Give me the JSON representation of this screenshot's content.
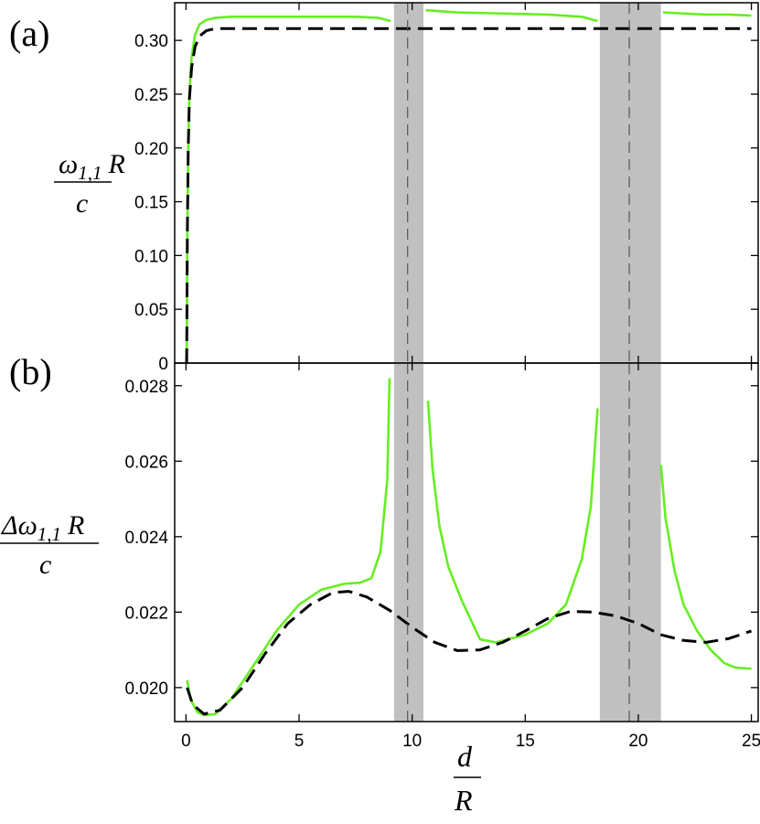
{
  "chart_data": [
    {
      "type": "line",
      "panel_label": "(a)",
      "ylabel": {
        "numerator_symbol": "ω",
        "numerator_subscript": "1,1",
        "numerator_var": "R",
        "denominator": "c"
      },
      "xlim": [
        -0.5,
        25.3
      ],
      "ylim": [
        0,
        0.335
      ],
      "xticks": [
        0,
        5,
        10,
        15,
        20,
        25
      ],
      "yticks": [
        0,
        0.05,
        0.1,
        0.15,
        0.2,
        0.25,
        0.3
      ],
      "ytick_labels": [
        "0",
        "0.05",
        "0.10",
        "0.15",
        "0.20",
        "0.25",
        "0.30"
      ],
      "x_tick_labels_shown": false,
      "shaded_bands": [
        [
          9.2,
          10.5
        ],
        [
          18.3,
          21.0
        ]
      ],
      "vertical_dashed_lines": [
        9.8,
        19.6
      ],
      "series": [
        {
          "style": "solid",
          "color": "#66ee22",
          "segments": [
            [
              [
                0.03,
                0.0
              ],
              [
                0.06,
                0.12
              ],
              [
                0.1,
                0.2
              ],
              [
                0.15,
                0.25
              ],
              [
                0.25,
                0.285
              ],
              [
                0.4,
                0.305
              ],
              [
                0.6,
                0.315
              ],
              [
                0.9,
                0.319
              ],
              [
                1.3,
                0.321
              ],
              [
                2,
                0.322
              ],
              [
                4,
                0.322
              ],
              [
                6,
                0.322
              ],
              [
                7.5,
                0.322
              ],
              [
                8.5,
                0.321
              ],
              [
                9.05,
                0.318
              ]
            ],
            [
              [
                10.6,
                0.328
              ],
              [
                12,
                0.326
              ],
              [
                14,
                0.325
              ],
              [
                16,
                0.324
              ],
              [
                17.5,
                0.322
              ],
              [
                18.2,
                0.318
              ]
            ],
            [
              [
                21.1,
                0.326
              ],
              [
                22,
                0.325
              ],
              [
                23,
                0.324
              ],
              [
                24,
                0.324
              ],
              [
                25,
                0.323
              ]
            ]
          ]
        },
        {
          "style": "dashed",
          "color": "#000000",
          "segments": [
            [
              [
                0.03,
                0.0
              ],
              [
                0.06,
                0.12
              ],
              [
                0.1,
                0.2
              ],
              [
                0.15,
                0.245
              ],
              [
                0.25,
                0.275
              ],
              [
                0.4,
                0.294
              ],
              [
                0.6,
                0.304
              ],
              [
                0.9,
                0.309
              ],
              [
                1.3,
                0.311
              ],
              [
                2,
                0.311
              ],
              [
                5,
                0.311
              ],
              [
                10,
                0.311
              ],
              [
                15,
                0.311
              ],
              [
                20,
                0.311
              ],
              [
                25,
                0.311
              ]
            ]
          ]
        }
      ]
    },
    {
      "type": "line",
      "panel_label": "(b)",
      "xlabel": {
        "numerator": "d",
        "denominator": "R"
      },
      "ylabel": {
        "numerator_symbol": "Δω",
        "numerator_subscript": "1,1",
        "numerator_var": "R",
        "denominator": "c"
      },
      "xlim": [
        -0.5,
        25.3
      ],
      "ylim": [
        0.0191,
        0.0286
      ],
      "xticks": [
        0,
        5,
        10,
        15,
        20,
        25
      ],
      "xtick_labels": [
        "0",
        "5",
        "10",
        "15",
        "20",
        "25"
      ],
      "yticks": [
        0.02,
        0.022,
        0.024,
        0.026,
        0.028
      ],
      "ytick_labels": [
        "0.020",
        "0.022",
        "0.024",
        "0.026",
        "0.028"
      ],
      "shaded_bands": [
        [
          9.2,
          10.5
        ],
        [
          18.3,
          21.0
        ]
      ],
      "vertical_dashed_lines": [
        9.8,
        19.6
      ],
      "series": [
        {
          "style": "solid",
          "color": "#66ee22",
          "segments": [
            [
              [
                0.05,
                0.0202
              ],
              [
                0.2,
                0.0197
              ],
              [
                0.5,
                0.01935
              ],
              [
                0.8,
                0.01927
              ],
              [
                1.3,
                0.0193
              ],
              [
                2,
                0.0197
              ],
              [
                3,
                0.0206
              ],
              [
                4,
                0.0215
              ],
              [
                5,
                0.0222
              ],
              [
                6,
                0.0226
              ],
              [
                7,
                0.02275
              ],
              [
                7.7,
                0.02278
              ],
              [
                8.2,
                0.0229
              ],
              [
                8.6,
                0.0236
              ],
              [
                8.9,
                0.0255
              ],
              [
                9.0,
                0.0282
              ]
            ],
            [
              [
                10.7,
                0.0276
              ],
              [
                10.9,
                0.0258
              ],
              [
                11.2,
                0.0243
              ],
              [
                11.6,
                0.0232
              ],
              [
                12.2,
                0.0223
              ],
              [
                13,
                0.02128
              ],
              [
                13.7,
                0.0212
              ],
              [
                15,
                0.0214
              ],
              [
                16,
                0.0217
              ],
              [
                16.8,
                0.0222
              ],
              [
                17.5,
                0.0234
              ],
              [
                17.9,
                0.0248
              ],
              [
                18.2,
                0.0274
              ]
            ],
            [
              [
                21.0,
                0.0259
              ],
              [
                21.2,
                0.0245
              ],
              [
                21.6,
                0.0231
              ],
              [
                22.0,
                0.0222
              ],
              [
                22.6,
                0.0215
              ],
              [
                23.2,
                0.021
              ],
              [
                23.8,
                0.02065
              ],
              [
                24.3,
                0.02053
              ],
              [
                25,
                0.0205
              ]
            ]
          ]
        },
        {
          "style": "dashed",
          "color": "#000000",
          "segments": [
            [
              [
                0.05,
                0.02
              ],
              [
                0.3,
                0.01955
              ],
              [
                0.8,
                0.0193
              ],
              [
                1.5,
                0.0194
              ],
              [
                2.5,
                0.02
              ],
              [
                3.5,
                0.0209
              ],
              [
                4.5,
                0.0217
              ],
              [
                5.5,
                0.0222
              ],
              [
                6.5,
                0.02252
              ],
              [
                7.2,
                0.02255
              ],
              [
                8,
                0.0224
              ],
              [
                9,
                0.02205
              ],
              [
                10,
                0.0216
              ],
              [
                11,
                0.0212
              ],
              [
                12,
                0.02098
              ],
              [
                13,
                0.021
              ],
              [
                14,
                0.0212
              ],
              [
                15,
                0.0215
              ],
              [
                16,
                0.02183
              ],
              [
                17,
                0.02202
              ],
              [
                18,
                0.022
              ],
              [
                19,
                0.0219
              ],
              [
                20,
                0.0217
              ],
              [
                21,
                0.0214
              ],
              [
                22,
                0.02125
              ],
              [
                23,
                0.0212
              ],
              [
                24,
                0.0213
              ],
              [
                25,
                0.0215
              ]
            ]
          ]
        }
      ]
    }
  ]
}
